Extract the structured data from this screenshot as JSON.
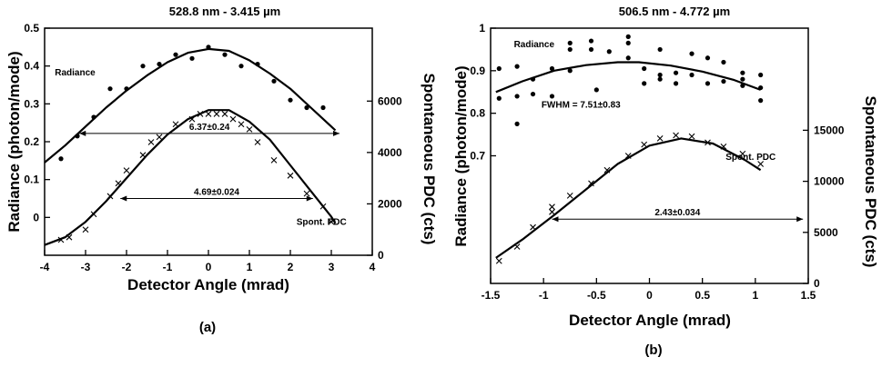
{
  "chart_data": [
    {
      "type": "scatter",
      "panel_label": "(a)",
      "title": "528.8 nm - 3.415 µm",
      "xlabel": "Detector Angle (mrad)",
      "ylabel": "Radiance (photon/mode)",
      "y2label": "Spontaneous PDC (cts)",
      "xlim": [
        -4,
        4
      ],
      "ylim": [
        -0.1,
        0.5
      ],
      "y2lim": [
        0,
        7000
      ],
      "x_ticks": [
        -4,
        -3,
        -2,
        -1,
        0,
        1,
        2,
        3,
        4
      ],
      "y_ticks": [
        0,
        0.1,
        0.2,
        0.3,
        0.4,
        0.5
      ],
      "y2_ticks": [
        0,
        2000,
        4000,
        6000
      ],
      "series": [
        {
          "name": "Radiance",
          "marker": "dot",
          "axis": "left",
          "x": [
            -3.6,
            -3.2,
            -2.8,
            -2.4,
            -2.0,
            -1.6,
            -1.2,
            -0.8,
            -0.4,
            0.0,
            0.4,
            0.8,
            1.2,
            1.6,
            2.0,
            2.4,
            2.8
          ],
          "y": [
            0.155,
            0.215,
            0.265,
            0.34,
            0.34,
            0.4,
            0.405,
            0.43,
            0.42,
            0.45,
            0.43,
            0.4,
            0.405,
            0.36,
            0.31,
            0.29,
            0.29
          ],
          "fit_x": [
            -4.0,
            -3.5,
            -3.0,
            -2.5,
            -2.0,
            -1.5,
            -1.0,
            -0.5,
            0.0,
            0.5,
            1.0,
            1.5,
            2.0,
            2.5,
            3.0,
            3.1
          ],
          "fit_y": [
            0.145,
            0.19,
            0.24,
            0.29,
            0.335,
            0.375,
            0.41,
            0.435,
            0.445,
            0.44,
            0.415,
            0.38,
            0.34,
            0.29,
            0.24,
            0.23
          ]
        },
        {
          "name": "Spont. PDC",
          "marker": "x",
          "axis": "right",
          "x": [
            -3.6,
            -3.4,
            -3.0,
            -2.8,
            -2.4,
            -2.2,
            -2.0,
            -1.6,
            -1.4,
            -1.2,
            -0.8,
            -0.4,
            -0.2,
            0.0,
            0.2,
            0.4,
            0.6,
            0.8,
            1.0,
            1.2,
            1.6,
            2.0,
            2.4,
            2.8,
            3.0
          ],
          "y": [
            600,
            700,
            1000,
            1600,
            2300,
            2800,
            3300,
            3900,
            4400,
            4600,
            5100,
            5300,
            5500,
            5500,
            5500,
            5500,
            5300,
            5100,
            4900,
            4400,
            3700,
            3100,
            2400,
            1900,
            1300
          ],
          "fit_x": [
            -4.0,
            -3.5,
            -3.0,
            -2.5,
            -2.0,
            -1.5,
            -1.0,
            -0.5,
            0.0,
            0.5,
            1.0,
            1.5,
            2.0,
            2.5,
            3.0,
            3.1
          ],
          "fit_y": [
            400,
            700,
            1300,
            2100,
            3000,
            3900,
            4700,
            5300,
            5650,
            5650,
            5200,
            4500,
            3500,
            2500,
            1500,
            1250
          ]
        }
      ],
      "annotations": [
        {
          "text": "Radiance",
          "x": -3.75,
          "y": 0.375
        },
        {
          "text": "Spont. PDC",
          "x": 2.15,
          "y": -0.02
        },
        {
          "text": "6.37±0.24",
          "arrow_from": -3.15,
          "arrow_to": 3.2,
          "at_y": 0.222
        },
        {
          "text": "4.69±0.024",
          "arrow_from": -2.15,
          "arrow_to": 2.55,
          "at_y": 0.05
        }
      ]
    },
    {
      "type": "scatter",
      "panel_label": "(b)",
      "title": "506.5 nm - 4.772 µm",
      "xlabel": "Detector Angle (mrad)",
      "ylabel": "Radiance (photon/mode)",
      "y2label": "Spontaneous PDC (cts)",
      "xlim": [
        -1.5,
        1.5
      ],
      "ylim": [
        0.4,
        1.0
      ],
      "y2lim": [
        0,
        25000
      ],
      "x_ticks": [
        -1.5,
        -1,
        -0.5,
        0,
        0.5,
        1,
        1.5
      ],
      "y_ticks": [
        0.7,
        0.8,
        0.9,
        1
      ],
      "y2_ticks": [
        0,
        5000,
        10000,
        15000
      ],
      "series": [
        {
          "name": "Radiance",
          "marker": "dot",
          "axis": "left",
          "x": [
            -1.42,
            -1.42,
            -1.25,
            -1.25,
            -1.25,
            -1.1,
            -1.1,
            -0.92,
            -0.92,
            -0.75,
            -0.75,
            -0.75,
            -0.55,
            -0.55,
            -0.5,
            -0.38,
            -0.2,
            -0.2,
            -0.2,
            -0.05,
            -0.05,
            0.1,
            0.1,
            0.1,
            0.25,
            0.25,
            0.4,
            0.4,
            0.55,
            0.55,
            0.7,
            0.7,
            0.88,
            0.88,
            0.88,
            1.05,
            1.05,
            1.05
          ],
          "y": [
            0.905,
            0.835,
            0.91,
            0.84,
            0.775,
            0.88,
            0.845,
            0.905,
            0.84,
            0.965,
            0.95,
            0.9,
            0.97,
            0.95,
            0.855,
            0.945,
            0.98,
            0.965,
            0.93,
            0.905,
            0.87,
            0.95,
            0.89,
            0.88,
            0.895,
            0.87,
            0.94,
            0.89,
            0.93,
            0.87,
            0.92,
            0.875,
            0.895,
            0.88,
            0.865,
            0.89,
            0.86,
            0.83
          ],
          "fit_x": [
            -1.45,
            -1.2,
            -0.9,
            -0.6,
            -0.3,
            -0.1,
            0.2,
            0.5,
            0.8,
            1.05
          ],
          "fit_y": [
            0.85,
            0.875,
            0.9,
            0.913,
            0.92,
            0.92,
            0.912,
            0.898,
            0.878,
            0.855
          ]
        },
        {
          "name": "Spont. PDC",
          "marker": "x",
          "axis": "right",
          "x": [
            -1.42,
            -1.25,
            -1.1,
            -0.92,
            -0.92,
            -0.75,
            -0.55,
            -0.4,
            -0.2,
            -0.05,
            0.1,
            0.25,
            0.4,
            0.55,
            0.7,
            0.88,
            1.05
          ],
          "y": [
            2200,
            3600,
            5500,
            7500,
            7000,
            8600,
            9800,
            11100,
            12500,
            13600,
            14200,
            14500,
            14400,
            13800,
            13400,
            12700,
            11700
          ],
          "fit_x": [
            -1.45,
            -1.2,
            -0.9,
            -0.6,
            -0.3,
            0.0,
            0.3,
            0.6,
            0.9,
            1.05
          ],
          "fit_y": [
            2500,
            4300,
            6700,
            9200,
            11700,
            13500,
            14200,
            13700,
            12100,
            11100
          ]
        }
      ],
      "annotations": [
        {
          "text": "Radiance",
          "x": -1.28,
          "y": 0.955
        },
        {
          "text": "FWHM = 7.51±0.83",
          "x": -1.02,
          "y": 0.813
        },
        {
          "text": "Spont. PDC",
          "x": 0.72,
          "y": 0.69
        },
        {
          "text": "2.43±0.034",
          "arrow_from": -0.92,
          "arrow_to": 1.45,
          "at_y": 6300
        }
      ]
    }
  ]
}
